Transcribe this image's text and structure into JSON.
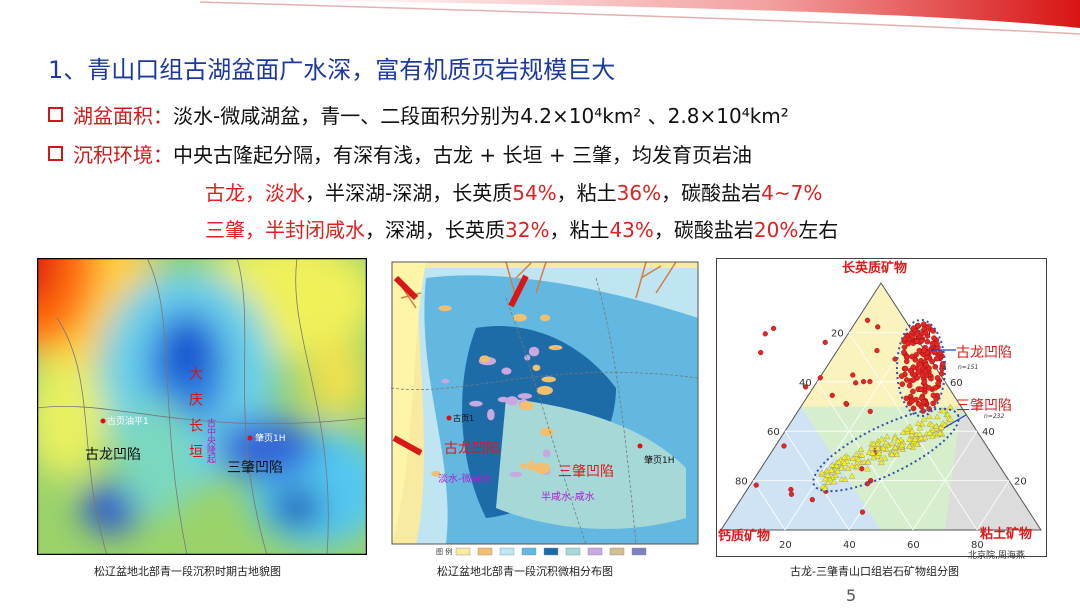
{
  "slide": {
    "title": "1、青山口组古湖盆面广水深，富有机质页岩规模巨大",
    "bullets": [
      {
        "label": "湖盆面积：",
        "text": "淡水-微咸湖盆，青一、二段面积分别为4.2×10⁴km² 、2.8×10⁴km²"
      },
      {
        "label": "沉积环境：",
        "text": "中央古隆起分隔，有深有浅，古龙 + 长垣 + 三肇，均发育页岩油"
      }
    ],
    "details": [
      [
        {
          "text": "古龙，淡水",
          "color": "#e02020"
        },
        {
          "text": "，半深湖-深湖，长英质",
          "color": "#111111"
        },
        {
          "text": "54%",
          "color": "#e02020"
        },
        {
          "text": "，粘土",
          "color": "#111111"
        },
        {
          "text": "36%",
          "color": "#e02020"
        },
        {
          "text": "，碳酸盐岩",
          "color": "#111111"
        },
        {
          "text": "4~7%",
          "color": "#e02020"
        }
      ],
      [
        {
          "text": "三肇，半封闭咸水",
          "color": "#e02020"
        },
        {
          "text": "，深湖，长英质",
          "color": "#111111"
        },
        {
          "text": "32%",
          "color": "#e02020"
        },
        {
          "text": "，粘土",
          "color": "#111111"
        },
        {
          "text": "43%",
          "color": "#e02020"
        },
        {
          "text": "，碳酸盐岩",
          "color": "#111111"
        },
        {
          "text": "20%",
          "color": "#e02020"
        },
        {
          "text": "左右",
          "color": "#111111"
        }
      ]
    ],
    "page_number": "5",
    "credit": "北京院,周海燕"
  },
  "figures": [
    {
      "caption": "松辽盆地北部青一段沉积时期古地貌图",
      "labels": {
        "uplift_belt": "大庆长垣",
        "central_uplift": "古中央隆起",
        "well_gulong": "古页油平1",
        "gulong": "古龙凹陷",
        "sanzhao": "三肇凹陷",
        "well_sanzhao": "肇页1H"
      }
    },
    {
      "caption": "松辽盆地北部青一段沉积微相分布图",
      "labels": {
        "gulong": "古龙凹陷",
        "fresh": "淡水-微咸水",
        "sanzhao": "三肇凹陷",
        "saline": "半咸水-咸水",
        "well_sanzhao": "肇页1H",
        "well_gulong": "古页1",
        "legend": "图 例"
      }
    },
    {
      "caption": "古龙-三肇青山口组岩石矿物组分图",
      "apex_top": "长英质矿物",
      "apex_left": "钙质矿物",
      "apex_right": "粘土矿物",
      "ticks": [
        20,
        40,
        60,
        80
      ],
      "groups": [
        {
          "name": "古龙凹陷",
          "n": "n=151"
        },
        {
          "name": "三肇凹陷",
          "n": "n=232"
        }
      ]
    }
  ]
}
